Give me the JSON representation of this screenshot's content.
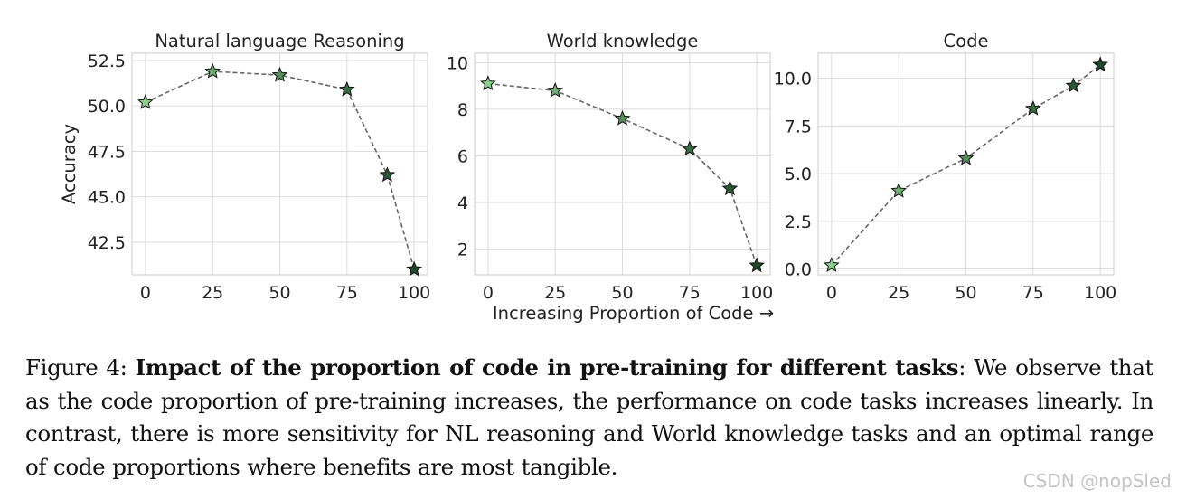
{
  "chart_data": [
    {
      "type": "line",
      "title": "Natural language Reasoning",
      "xlabel": "",
      "ylabel": "Accuracy",
      "x": [
        0,
        25,
        50,
        75,
        90,
        100
      ],
      "y": [
        50.2,
        51.9,
        51.7,
        50.9,
        46.2,
        41.0
      ],
      "xlim": [
        -5,
        105
      ],
      "ylim": [
        40.7,
        52.9
      ],
      "xticks": [
        0,
        25,
        50,
        75,
        100
      ],
      "xtick_labels": [
        "0",
        "25",
        "50",
        "75",
        "100"
      ],
      "yticks": [
        42.5,
        45.0,
        47.5,
        50.0,
        52.5
      ],
      "ytick_labels": [
        "42.5",
        "45.0",
        "47.5",
        "50.0",
        "52.5"
      ],
      "grid": true,
      "marker": "star"
    },
    {
      "type": "line",
      "title": "World knowledge",
      "xlabel": "Increasing Proportion of Code →",
      "ylabel": "",
      "x": [
        0,
        25,
        50,
        75,
        90,
        100
      ],
      "y": [
        9.1,
        8.8,
        7.6,
        6.3,
        4.6,
        1.3
      ],
      "xlim": [
        -5,
        105
      ],
      "ylim": [
        0.9,
        10.4
      ],
      "xticks": [
        0,
        25,
        50,
        75,
        100
      ],
      "xtick_labels": [
        "0",
        "25",
        "50",
        "75",
        "100"
      ],
      "yticks": [
        2,
        4,
        6,
        8,
        10
      ],
      "ytick_labels": [
        "2",
        "4",
        "6",
        "8",
        "10"
      ],
      "grid": true,
      "marker": "star"
    },
    {
      "type": "line",
      "title": "Code",
      "xlabel": "",
      "ylabel": "",
      "x": [
        0,
        25,
        50,
        75,
        90,
        100
      ],
      "y": [
        0.2,
        4.1,
        5.8,
        8.4,
        9.6,
        10.7
      ],
      "xlim": [
        -5,
        105
      ],
      "ylim": [
        -0.3,
        11.3
      ],
      "xticks": [
        0,
        25,
        50,
        75,
        100
      ],
      "xtick_labels": [
        "0",
        "25",
        "50",
        "75",
        "100"
      ],
      "yticks": [
        0.0,
        2.5,
        5.0,
        7.5,
        10.0
      ],
      "ytick_labels": [
        "0.0",
        "2.5",
        "5.0",
        "7.5",
        "10.0"
      ],
      "grid": true,
      "marker": "star"
    }
  ],
  "colors": {
    "line": "#666666",
    "grid": "#dddddd",
    "spine": "#cccccc",
    "marker_fill_light": "#8bd18b",
    "marker_fill_dark": "#1f4a2a",
    "marker_edge": "#111111"
  },
  "caption": {
    "prefix": "Figure 4: ",
    "bold": "Impact of the proportion of code in pre-training for different tasks",
    "text": ": We observe that as the code proportion of pre-training increases, the performance on code tasks increases linearly. In contrast, there is more sensitivity for NL reasoning and World knowledge tasks and an optimal range of code proportions where benefits are most tangible."
  },
  "watermark": "CSDN @nopSled"
}
